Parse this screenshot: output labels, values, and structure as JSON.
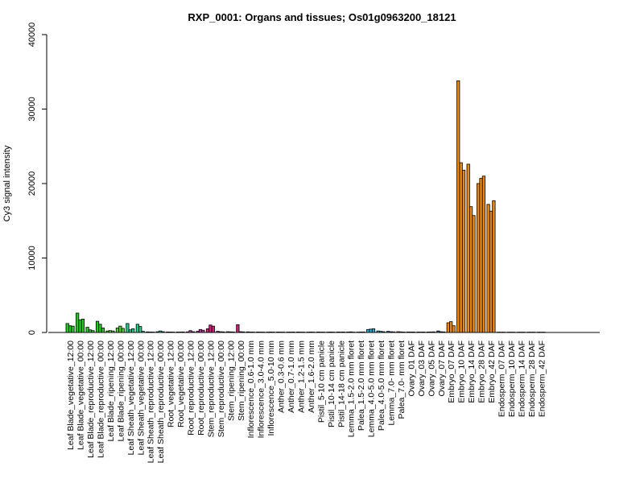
{
  "chart_data": {
    "type": "bar",
    "title": "RXP_0001: Organs and tissues; Os01g0963200_18121",
    "ylabel": "Cy3 signal intensity",
    "xlabel": "",
    "ylim": [
      0,
      40000
    ],
    "yticks": [
      0,
      10000,
      20000,
      30000,
      40000
    ],
    "grid": false,
    "categories": [
      "Leaf Blade_vegetative_12:00",
      "Leaf Blade_vegetative_00:00",
      "Leaf Blade_reproductive_12:00",
      "Leaf Blade_reproductive_00:00",
      "Leaf Blade_ripening_12:00",
      "Leaf Blade_ripening_00:00",
      "Leaf Sheath_vegetative_12:00",
      "Leaf Sheath_vegetative_00:00",
      "Leaf Sheath_reproductive_12:00",
      "Leaf Sheath_reproductive_00:00",
      "Root_vegetative_12:00",
      "Root_vegetative_00:00",
      "Root_reproductive_12:00",
      "Root_reproductive_00:00",
      "Stem_reproductive_12:00",
      "Stem_reproductive_00:00",
      "Stem_ripening_12:00",
      "Stem_ripening_00:00",
      "Inflorescence_0.6-1.0 mm",
      "Inflorescence_3.0-4.0 mm",
      "Inflorescence_5.0-10 mm",
      "Anther_0.3-0.6 mm",
      "Anther_0.7-1.0 mm",
      "Anther_1.2-1.5 mm",
      "Anther_1.6-2.0 mm",
      "Pistil_5-10 cm panicle",
      "Pistil_10-14 cm panicle",
      "Pistil_14-18 cm panicle",
      "Lemma_1.5-2.0 mm floret",
      "Palea_1.5-2.0 mm floret",
      "Lemma_4.0-5.0 mm floret",
      "Palea_4.0-5.0 mm floret",
      "Lemma_7.0- mm floret",
      "Palea_7.0- mm floret",
      "Ovary_01 DAF",
      "Ovary_03 DAF",
      "Ovary_05 DAF",
      "Ovary_07 DAF",
      "Embryo_07 DAF",
      "Embryo_10 DAF",
      "Embryo_14 DAF",
      "Embryo_28 DAF",
      "Embryo_42 DAF",
      "Endosperm_07 DAF",
      "Endosperm_10 DAF",
      "Endosperm_14 DAF",
      "Endosperm_28 DAF",
      "Endosperm_42 DAF"
    ],
    "groups": [
      {
        "color": "#22cc22",
        "values": [
          1200,
          900,
          850
        ]
      },
      {
        "color": "#22cc22",
        "values": [
          2600,
          1700,
          1800
        ]
      },
      {
        "color": "#22cc22",
        "values": [
          700,
          350,
          250
        ]
      },
      {
        "color": "#22cc22",
        "values": [
          1500,
          1100,
          600
        ]
      },
      {
        "color": "#55cc33",
        "values": [
          200,
          250,
          200
        ]
      },
      {
        "color": "#55cc33",
        "values": [
          600,
          850,
          550
        ]
      },
      {
        "color": "#22cc88",
        "values": [
          1200,
          350,
          500
        ]
      },
      {
        "color": "#22cc88",
        "values": [
          1100,
          800,
          150
        ]
      },
      {
        "color": "#33bb99",
        "values": [
          80,
          60,
          50
        ]
      },
      {
        "color": "#33bb99",
        "values": [
          100,
          200,
          100
        ]
      },
      {
        "color": "#7733cc",
        "values": [
          70,
          60,
          50
        ]
      },
      {
        "color": "#7733cc",
        "values": [
          60,
          60,
          70
        ]
      },
      {
        "color": "#bb33aa",
        "values": [
          80,
          250,
          100
        ]
      },
      {
        "color": "#bb33aa",
        "values": [
          150,
          400,
          300
        ]
      },
      {
        "color": "#cc2277",
        "values": [
          500,
          1000,
          850
        ]
      },
      {
        "color": "#cc2277",
        "values": [
          150,
          100,
          80
        ]
      },
      {
        "color": "#cc2277",
        "values": [
          100,
          80,
          70
        ]
      },
      {
        "color": "#cc2277",
        "values": [
          1050,
          100,
          80
        ]
      },
      {
        "color": "#aaaaaa",
        "values": [
          80,
          60,
          50
        ]
      },
      {
        "color": "#aaaaaa",
        "values": [
          60,
          50,
          50
        ]
      },
      {
        "color": "#aaaaaa",
        "values": [
          50,
          60,
          50
        ]
      },
      {
        "color": "#bbbbbb",
        "values": [
          60,
          50,
          50
        ]
      },
      {
        "color": "#bbbbbb",
        "values": [
          50,
          50,
          60
        ]
      },
      {
        "color": "#bbbbbb",
        "values": [
          60,
          50,
          50
        ]
      },
      {
        "color": "#bbbbbb",
        "values": [
          50,
          60,
          50
        ]
      },
      {
        "color": "#99aacc",
        "values": [
          60,
          50,
          50
        ]
      },
      {
        "color": "#99aacc",
        "values": [
          50,
          60,
          50
        ]
      },
      {
        "color": "#99aacc",
        "values": [
          60,
          50,
          60
        ]
      },
      {
        "color": "#33aacc",
        "values": [
          60,
          80,
          50
        ]
      },
      {
        "color": "#33aacc",
        "values": [
          50,
          60,
          70
        ]
      },
      {
        "color": "#33aacc",
        "values": [
          400,
          450,
          500
        ]
      },
      {
        "color": "#33aacc",
        "values": [
          200,
          150,
          100
        ]
      },
      {
        "color": "#3377cc",
        "values": [
          150,
          100,
          80
        ]
      },
      {
        "color": "#3377cc",
        "values": [
          100,
          80,
          60
        ]
      },
      {
        "color": "#3355cc",
        "values": [
          70,
          60,
          60
        ]
      },
      {
        "color": "#3355cc",
        "values": [
          60,
          50,
          60
        ]
      },
      {
        "color": "#3355cc",
        "values": [
          60,
          70,
          80
        ]
      },
      {
        "color": "#3355cc",
        "values": [
          200,
          100,
          80
        ]
      },
      {
        "color": "#ee8811",
        "values": [
          1300,
          1450,
          900
        ]
      },
      {
        "color": "#ee8811",
        "values": [
          33800,
          22800,
          21800
        ]
      },
      {
        "color": "#ee8811",
        "values": [
          22600,
          16900,
          15700
        ]
      },
      {
        "color": "#ee8811",
        "values": [
          20000,
          20700,
          21000
        ]
      },
      {
        "color": "#ee8811",
        "values": [
          17200,
          16300,
          17700
        ]
      },
      {
        "color": "#eedd33",
        "values": [
          40,
          40,
          40
        ]
      },
      {
        "color": "#eedd33",
        "values": [
          40,
          40,
          40
        ]
      },
      {
        "color": "#eedd33",
        "values": [
          40,
          40,
          40
        ]
      },
      {
        "color": "#eedd33",
        "values": [
          40,
          40,
          40
        ]
      },
      {
        "color": "#eedd33",
        "values": [
          40,
          40,
          40
        ]
      }
    ]
  }
}
